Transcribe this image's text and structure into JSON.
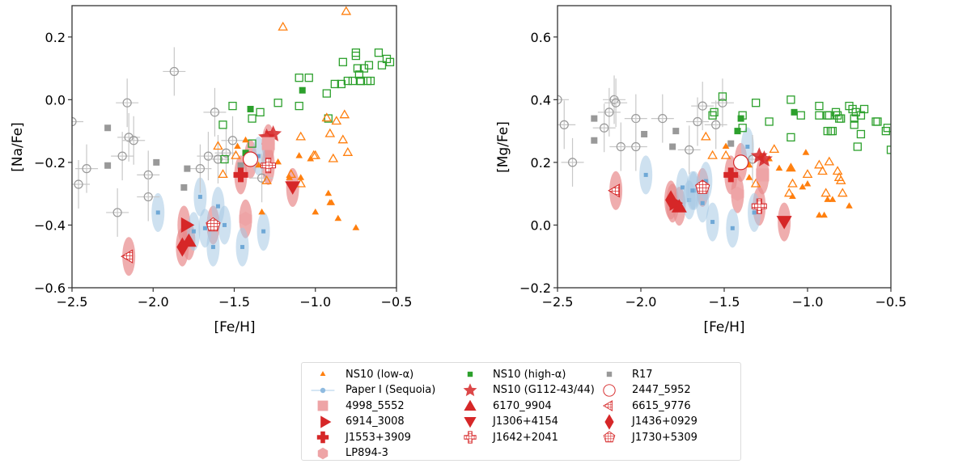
{
  "colors": {
    "low_alpha": "#ff7f0e",
    "high_alpha": "#2ca02c",
    "r17": "#999999",
    "sequoia": "#1f77b4",
    "sequoia_ellipse": "#a6c8e4",
    "red": "#d62728",
    "red_ellipse": "#e88a8c",
    "pink": "#eea4a6"
  },
  "legend": {
    "items": [
      {
        "label": "NS10 (low-α)",
        "marker": "tri-up-small",
        "color": "#ff7f0e"
      },
      {
        "label": "NS10 (high-α)",
        "marker": "square-small",
        "color": "#2ca02c"
      },
      {
        "label": "R17",
        "marker": "square-small",
        "color": "#999999"
      },
      {
        "label": "Paper I (Sequoia)",
        "marker": "line-circle",
        "color": "#1f77b4"
      },
      {
        "label": "NS10 (G112-43/44)",
        "marker": "star",
        "color": "#d62728"
      },
      {
        "label": "2447_5952",
        "marker": "open-circle",
        "color": "#d62728"
      },
      {
        "label": "4998_5552",
        "marker": "square",
        "color": "#eea4a6"
      },
      {
        "label": "6170_9904",
        "marker": "tri-up",
        "color": "#d62728"
      },
      {
        "label": "6615_9776",
        "marker": "tri-left-hatch",
        "color": "#d62728"
      },
      {
        "label": "6914_3008",
        "marker": "tri-right",
        "color": "#d62728"
      },
      {
        "label": "J1306+4154",
        "marker": "tri-down",
        "color": "#d62728"
      },
      {
        "label": "J1436+0929",
        "marker": "diamond",
        "color": "#d62728"
      },
      {
        "label": "J1553+3909",
        "marker": "plus",
        "color": "#d62728"
      },
      {
        "label": "J1642+2041",
        "marker": "cross-hatch",
        "color": "#d62728"
      },
      {
        "label": "J1730+5309",
        "marker": "pentagon-hatch",
        "color": "#d62728"
      },
      {
        "label": "LP894-3",
        "marker": "hexagon",
        "color": "#eea4a6"
      }
    ]
  },
  "chart_data": [
    {
      "type": "scatter",
      "title": "",
      "xlabel": "[Fe/H]",
      "ylabel": "[Na/Fe]",
      "xlim": [
        -2.5,
        -0.5
      ],
      "ylim": [
        -0.6,
        0.3
      ],
      "xticks": [
        "−2.5",
        "−2.0",
        "−1.5",
        "−1.0",
        "−0.5"
      ],
      "xtick_values": [
        -2.5,
        -2.0,
        -1.5,
        -1.0,
        -0.5
      ],
      "yticks": [
        "−0.6",
        "−0.4",
        "−0.2",
        "0.0",
        "0.2"
      ],
      "ytick_values": [
        -0.6,
        -0.4,
        -0.2,
        0.0,
        0.2
      ],
      "grid": false,
      "series": [
        {
          "name": "NS10 (low-α) filled",
          "marker": "tri-up-filled",
          "color": "#ff7f0e",
          "x": [
            -1.48,
            -1.43,
            -1.35,
            -1.23,
            -1.16,
            -1.1,
            -1.03,
            -1.0,
            -0.92,
            -0.91,
            -0.9,
            -0.86,
            -0.75,
            -1.33,
            -1.09
          ],
          "y": [
            -0.15,
            -0.13,
            -0.21,
            -0.2,
            -0.25,
            -0.18,
            -0.19,
            -0.36,
            -0.3,
            -0.33,
            -0.33,
            -0.38,
            -0.41,
            -0.36,
            -0.25
          ]
        },
        {
          "name": "NS10 (low-α) open",
          "marker": "tri-up-open",
          "color": "#ff7f0e",
          "x": [
            -1.2,
            -0.81,
            -1.6,
            -1.57,
            -1.49,
            -1.3,
            -1.15,
            -1.09,
            -1.09,
            -1.01,
            -1.0,
            -0.93,
            -0.91,
            -0.89,
            -0.87,
            -0.82,
            -0.83,
            -0.8
          ],
          "y": [
            0.23,
            0.28,
            -0.15,
            -0.24,
            -0.18,
            -0.26,
            -0.24,
            -0.12,
            -0.27,
            -0.18,
            -0.18,
            -0.06,
            -0.11,
            -0.19,
            -0.07,
            -0.05,
            -0.13,
            -0.17
          ]
        },
        {
          "name": "NS10 (high-α) filled",
          "marker": "square-filled",
          "color": "#2ca02c",
          "x": [
            -1.4,
            -1.08,
            -1.43
          ],
          "y": [
            -0.03,
            0.03,
            -0.17
          ]
        },
        {
          "name": "NS10 (high-α) open",
          "marker": "square-open",
          "color": "#2ca02c",
          "x": [
            -1.51,
            -1.39,
            -1.34,
            -1.23,
            -1.1,
            -1.1,
            -1.04,
            -0.93,
            -0.92,
            -0.88,
            -0.84,
            -0.83,
            -0.8,
            -0.77,
            -0.75,
            -0.75,
            -0.74,
            -0.73,
            -0.7,
            -0.67,
            -0.66,
            -0.61,
            -0.59,
            -0.56,
            -0.54,
            -1.57,
            -1.56,
            -1.39,
            -0.72,
            -0.72,
            -0.68
          ],
          "y": [
            -0.02,
            -0.06,
            -0.04,
            -0.01,
            0.07,
            -0.02,
            0.07,
            0.02,
            -0.06,
            0.05,
            0.05,
            0.12,
            0.06,
            0.06,
            0.14,
            0.15,
            0.1,
            0.08,
            0.1,
            0.11,
            0.06,
            0.15,
            0.11,
            0.13,
            0.12,
            -0.08,
            -0.19,
            -0.14,
            0.06,
            0.06,
            0.06
          ]
        },
        {
          "name": "R17 filled",
          "marker": "square-filled",
          "color": "#999999",
          "x": [
            -2.28,
            -2.28,
            -1.98,
            -1.79,
            -1.81,
            -1.46
          ],
          "y": [
            -0.09,
            -0.21,
            -0.2,
            -0.22,
            -0.28,
            -0.21
          ]
        },
        {
          "name": "R17 open",
          "marker": "open-circle-err",
          "color": "#999999",
          "x": [
            -2.5,
            -2.46,
            -2.41,
            -2.22,
            -2.19,
            -2.16,
            -2.15,
            -2.12,
            -2.03,
            -2.03,
            -1.87,
            -1.71,
            -1.66,
            -1.62,
            -1.51,
            -1.55,
            -1.33,
            -1.6
          ],
          "y": [
            -0.07,
            -0.27,
            -0.22,
            -0.36,
            -0.18,
            -0.01,
            -0.12,
            -0.13,
            -0.24,
            -0.31,
            0.09,
            -0.22,
            -0.18,
            -0.04,
            -0.13,
            -0.17,
            -0.25,
            -0.19
          ]
        },
        {
          "name": "Paper I (Sequoia)",
          "marker": "ellipse-point",
          "color": "#1f77b4",
          "x": [
            -1.97,
            -1.71,
            -1.75,
            -1.68,
            -1.63,
            -1.6,
            -1.56,
            -1.45,
            -1.32,
            -1.35
          ],
          "y": [
            -0.36,
            -0.31,
            -0.42,
            -0.41,
            -0.47,
            -0.34,
            -0.4,
            -0.47,
            -0.42,
            -0.18
          ]
        },
        {
          "name": "NS10 (G112-43/44)",
          "marker": "star",
          "color": "#d62728",
          "x": [
            -1.3,
            -1.26
          ],
          "y": [
            -0.12,
            -0.11
          ]
        },
        {
          "name": "2447_5952",
          "marker": "open-circle",
          "color": "#d62728",
          "x": [
            -1.4
          ],
          "y": [
            -0.19
          ]
        },
        {
          "name": "4998_5552",
          "marker": "square",
          "color": "#eea4a6",
          "x": [
            -1.29
          ],
          "y": [
            -0.14
          ]
        },
        {
          "name": "6170_9904",
          "marker": "tri-up",
          "color": "#d62728",
          "x": [
            -1.78
          ],
          "y": [
            -0.45
          ]
        },
        {
          "name": "6615_9776",
          "marker": "tri-left-hatch",
          "color": "#d62728",
          "x": [
            -2.15
          ],
          "y": [
            -0.5
          ]
        },
        {
          "name": "6914_3008",
          "marker": "tri-right",
          "color": "#d62728",
          "x": [
            -1.81
          ],
          "y": [
            -0.4
          ]
        },
        {
          "name": "J1306+4154",
          "marker": "tri-down",
          "color": "#d62728",
          "x": [
            -1.14
          ],
          "y": [
            -0.28
          ]
        },
        {
          "name": "J1436+0929",
          "marker": "diamond",
          "color": "#d62728",
          "x": [
            -1.82
          ],
          "y": [
            -0.47
          ]
        },
        {
          "name": "J1553+3909",
          "marker": "plus",
          "color": "#d62728",
          "x": [
            -1.46
          ],
          "y": [
            -0.24
          ]
        },
        {
          "name": "J1642+2041",
          "marker": "cross-hatch",
          "color": "#d62728",
          "x": [
            -1.29
          ],
          "y": [
            -0.21
          ]
        },
        {
          "name": "J1730+5309",
          "marker": "pentagon-hatch",
          "color": "#d62728",
          "x": [
            -1.63
          ],
          "y": [
            -0.4
          ]
        },
        {
          "name": "LP894-3",
          "marker": "hexagon",
          "color": "#eea4a6",
          "x": [
            -1.43
          ],
          "y": [
            -0.38
          ]
        }
      ]
    },
    {
      "type": "scatter",
      "title": "",
      "xlabel": "[Fe/H]",
      "ylabel": "[Mg/Fe]",
      "xlim": [
        -2.5,
        -0.5
      ],
      "ylim": [
        -0.2,
        0.7
      ],
      "xticks": [
        "−2.5",
        "−2.0",
        "−1.5",
        "−1.0",
        "−0.5"
      ],
      "xtick_values": [
        -2.5,
        -2.0,
        -1.5,
        -1.0,
        -0.5
      ],
      "yticks": [
        "−0.2",
        "0.0",
        "0.2",
        "0.4",
        "0.6"
      ],
      "ytick_values": [
        -0.2,
        0.0,
        0.2,
        0.4,
        0.6
      ],
      "grid": false,
      "series": [
        {
          "name": "NS10 (low-α) filled",
          "marker": "tri-up-filled",
          "color": "#ff7f0e",
          "x": [
            -1.49,
            -1.35,
            -1.35,
            -1.23,
            -1.17,
            -1.1,
            -1.09,
            -1.03,
            -1.01,
            -1.0,
            -0.88,
            -0.85,
            -0.93,
            -0.9,
            -0.75,
            -1.28
          ],
          "y": [
            0.25,
            0.19,
            0.15,
            0.21,
            0.18,
            0.18,
            0.09,
            0.12,
            0.23,
            0.13,
            0.08,
            0.08,
            0.03,
            0.03,
            0.06,
            0.22
          ]
        },
        {
          "name": "NS10 (low-α) open",
          "marker": "tri-up-open",
          "color": "#ff7f0e",
          "x": [
            -1.61,
            -1.57,
            -1.49,
            -1.31,
            -1.2,
            -1.1,
            -1.09,
            -1.0,
            -0.93,
            -0.91,
            -0.87,
            -0.89,
            -0.82,
            -0.81,
            -0.8,
            -0.79,
            -1.11
          ],
          "y": [
            0.28,
            0.22,
            0.22,
            0.13,
            0.24,
            0.18,
            0.13,
            0.16,
            0.19,
            0.17,
            0.2,
            0.1,
            0.17,
            0.15,
            0.14,
            0.1,
            0.1
          ]
        },
        {
          "name": "NS10 (high-α) filled",
          "marker": "square-filled",
          "color": "#2ca02c",
          "x": [
            -1.4,
            -1.42,
            -1.08
          ],
          "y": [
            0.34,
            0.3,
            0.36
          ]
        },
        {
          "name": "NS10 (high-α) open",
          "marker": "square-open",
          "color": "#2ca02c",
          "x": [
            -1.51,
            -1.57,
            -1.56,
            -1.39,
            -1.39,
            -1.31,
            -1.23,
            -1.1,
            -1.1,
            -1.04,
            -0.93,
            -0.93,
            -0.88,
            -0.86,
            -0.85,
            -0.83,
            -0.8,
            -0.75,
            -0.73,
            -0.72,
            -0.72,
            -0.71,
            -0.7,
            -0.68,
            -0.68,
            -0.66,
            -0.59,
            -0.58,
            -0.53,
            -0.52,
            -0.5,
            -0.88,
            -0.87,
            -0.82,
            -0.81
          ],
          "y": [
            0.41,
            0.35,
            0.36,
            0.35,
            0.31,
            0.39,
            0.33,
            0.4,
            0.28,
            0.35,
            0.38,
            0.35,
            0.35,
            0.3,
            0.3,
            0.36,
            0.34,
            0.38,
            0.37,
            0.34,
            0.32,
            0.36,
            0.25,
            0.35,
            0.29,
            0.37,
            0.33,
            0.33,
            0.3,
            0.31,
            0.24,
            0.3,
            0.35,
            0.35,
            0.34
          ]
        },
        {
          "name": "R17 filled",
          "marker": "square-filled",
          "color": "#999999",
          "x": [
            -2.28,
            -2.28,
            -1.98,
            -1.79,
            -1.81,
            -1.46
          ],
          "y": [
            0.34,
            0.27,
            0.29,
            0.3,
            0.25,
            0.26
          ]
        },
        {
          "name": "R17 open",
          "marker": "open-circle-err",
          "color": "#999999",
          "x": [
            -2.5,
            -2.46,
            -2.41,
            -2.22,
            -2.19,
            -2.16,
            -2.15,
            -2.12,
            -2.03,
            -2.03,
            -1.87,
            -1.71,
            -1.66,
            -1.63,
            -1.51,
            -1.55,
            -1.33
          ],
          "y": [
            0.4,
            0.32,
            0.2,
            0.31,
            0.36,
            0.4,
            0.39,
            0.25,
            0.34,
            0.25,
            0.34,
            0.24,
            0.33,
            0.38,
            0.39,
            0.32,
            0.21
          ]
        },
        {
          "name": "Paper I (Sequoia)",
          "marker": "ellipse-point",
          "color": "#1f77b4",
          "x": [
            -1.97,
            -1.75,
            -1.71,
            -1.68,
            -1.69,
            -1.61,
            -1.63,
            -1.57,
            -1.45,
            -1.32,
            -1.36
          ],
          "y": [
            0.16,
            0.12,
            0.08,
            0.11,
            0.11,
            0.14,
            0.07,
            0.01,
            -0.01,
            0.04,
            0.25
          ]
        },
        {
          "name": "NS10 (G112-43/44)",
          "marker": "star",
          "color": "#d62728",
          "x": [
            -1.29,
            -1.26
          ],
          "y": [
            0.22,
            0.21
          ]
        },
        {
          "name": "2447_5952",
          "marker": "open-circle",
          "color": "#d62728",
          "x": [
            -1.4
          ],
          "y": [
            0.2
          ]
        },
        {
          "name": "4998_5552",
          "marker": "square",
          "color": "#eea4a6",
          "x": [
            -1.27
          ],
          "y": [
            0.16
          ]
        },
        {
          "name": "6170_9904",
          "marker": "tri-up",
          "color": "#d62728",
          "x": [
            -1.77
          ],
          "y": [
            0.06
          ]
        },
        {
          "name": "6615_9776",
          "marker": "tri-left-hatch",
          "color": "#d62728",
          "x": [
            -2.15
          ],
          "y": [
            0.11
          ]
        },
        {
          "name": "6914_3008",
          "marker": "tri-right",
          "color": "#d62728",
          "x": [
            -1.81
          ],
          "y": [
            0.07
          ]
        },
        {
          "name": "J1306+4154",
          "marker": "tri-down",
          "color": "#d62728",
          "x": [
            -1.14
          ],
          "y": [
            0.01
          ]
        },
        {
          "name": "J1436+0929",
          "marker": "diamond",
          "color": "#d62728",
          "x": [
            -1.82
          ],
          "y": [
            0.08
          ]
        },
        {
          "name": "J1553+3909",
          "marker": "plus",
          "color": "#d62728",
          "x": [
            -1.46
          ],
          "y": [
            0.16
          ]
        },
        {
          "name": "J1642+2041",
          "marker": "cross-hatch",
          "color": "#d62728",
          "x": [
            -1.29
          ],
          "y": [
            0.06
          ]
        },
        {
          "name": "J1730+5309",
          "marker": "pentagon-hatch",
          "color": "#d62728",
          "x": [
            -1.63
          ],
          "y": [
            0.12
          ]
        },
        {
          "name": "LP894-3",
          "marker": "hexagon",
          "color": "#eea4a6",
          "x": [
            -1.42
          ],
          "y": [
            0.1
          ]
        }
      ]
    }
  ]
}
